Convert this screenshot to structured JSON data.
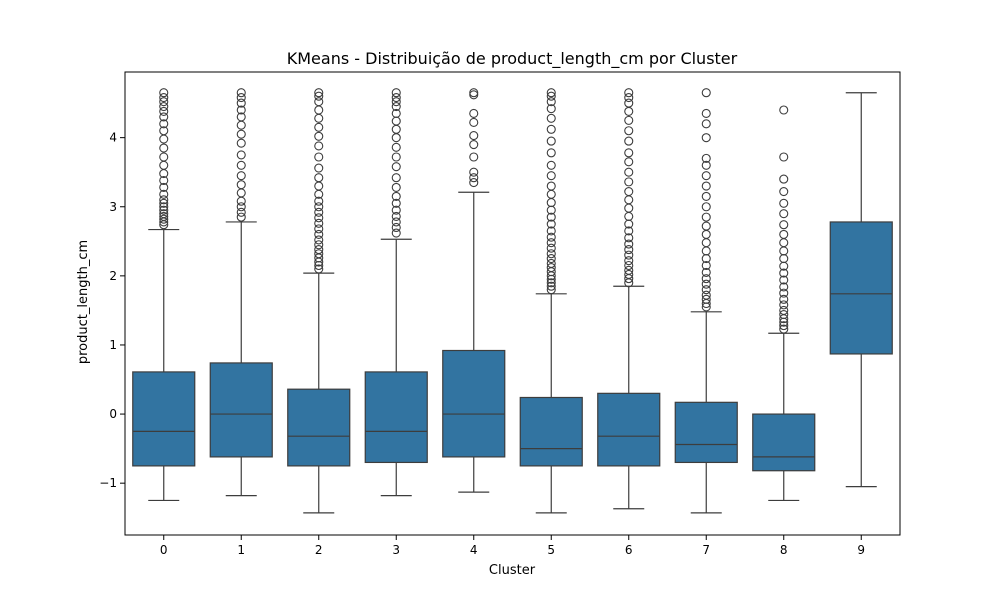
{
  "chart_data": {
    "type": "box",
    "title": "KMeans - Distribuição de product_length_cm por Cluster",
    "xlabel": "Cluster",
    "ylabel": "product_length_cm",
    "categories": [
      "0",
      "1",
      "2",
      "3",
      "4",
      "5",
      "6",
      "7",
      "8",
      "9"
    ],
    "ylim": [
      -1.75,
      4.95
    ],
    "yticks": [
      -1,
      0,
      1,
      2,
      3,
      4
    ],
    "ytick_labels": [
      "−1",
      "0",
      "1",
      "2",
      "3",
      "4"
    ],
    "box_color": "#3274a1",
    "line_color": "#3d3d3d",
    "grid": false,
    "boxes": [
      {
        "whislo": -1.25,
        "q1": -0.75,
        "med": -0.25,
        "q3": 0.61,
        "whishi": 2.67,
        "fliers": [
          2.74,
          2.78,
          2.82,
          2.86,
          2.9,
          2.95,
          3.0,
          3.05,
          3.1,
          3.18,
          3.28,
          3.38,
          3.48,
          3.6,
          3.72,
          3.85,
          3.98,
          4.1,
          4.2,
          4.3,
          4.38,
          4.45,
          4.52,
          4.58,
          4.65
        ]
      },
      {
        "whislo": -1.18,
        "q1": -0.62,
        "med": 0.0,
        "q3": 0.74,
        "whishi": 2.78,
        "fliers": [
          2.85,
          2.92,
          3.0,
          3.08,
          3.2,
          3.32,
          3.45,
          3.6,
          3.75,
          3.92,
          4.05,
          4.18,
          4.3,
          4.4,
          4.5,
          4.58,
          4.65
        ]
      },
      {
        "whislo": -1.43,
        "q1": -0.75,
        "med": -0.32,
        "q3": 0.36,
        "whishi": 2.04,
        "fliers": [
          2.1,
          2.15,
          2.2,
          2.26,
          2.32,
          2.38,
          2.45,
          2.52,
          2.6,
          2.68,
          2.76,
          2.84,
          2.92,
          3.0,
          3.08,
          3.18,
          3.3,
          3.42,
          3.56,
          3.72,
          3.88,
          4.02,
          4.15,
          4.28,
          4.4,
          4.52,
          4.6,
          4.65
        ]
      },
      {
        "whislo": -1.18,
        "q1": -0.7,
        "med": -0.25,
        "q3": 0.61,
        "whishi": 2.53,
        "fliers": [
          2.62,
          2.7,
          2.78,
          2.86,
          2.95,
          3.05,
          3.15,
          3.28,
          3.42,
          3.58,
          3.72,
          3.86,
          4.0,
          4.12,
          4.24,
          4.35,
          4.45,
          4.52,
          4.58,
          4.65
        ]
      },
      {
        "whislo": -1.13,
        "q1": -0.62,
        "med": 0.0,
        "q3": 0.92,
        "whishi": 3.21,
        "fliers": [
          3.35,
          3.42,
          3.5,
          3.72,
          3.9,
          4.03,
          4.22,
          4.35,
          4.62,
          4.65
        ]
      },
      {
        "whislo": -1.43,
        "q1": -0.75,
        "med": -0.5,
        "q3": 0.24,
        "whishi": 1.74,
        "fliers": [
          1.8,
          1.85,
          1.9,
          1.95,
          2.0,
          2.06,
          2.12,
          2.18,
          2.25,
          2.32,
          2.4,
          2.48,
          2.56,
          2.65,
          2.75,
          2.85,
          2.95,
          3.06,
          3.18,
          3.3,
          3.45,
          3.6,
          3.78,
          3.95,
          4.12,
          4.28,
          4.42,
          4.52,
          4.6,
          4.65
        ]
      },
      {
        "whislo": -1.37,
        "q1": -0.75,
        "med": -0.32,
        "q3": 0.3,
        "whishi": 1.85,
        "fliers": [
          1.9,
          1.96,
          2.02,
          2.08,
          2.15,
          2.22,
          2.3,
          2.38,
          2.46,
          2.55,
          2.65,
          2.75,
          2.86,
          2.98,
          3.1,
          3.22,
          3.36,
          3.5,
          3.65,
          3.78,
          3.95,
          4.1,
          4.25,
          4.38,
          4.5,
          4.58,
          4.65
        ]
      },
      {
        "whislo": -1.43,
        "q1": -0.7,
        "med": -0.44,
        "q3": 0.17,
        "whishi": 1.48,
        "fliers": [
          1.55,
          1.6,
          1.66,
          1.72,
          1.8,
          1.88,
          1.96,
          2.05,
          2.15,
          2.25,
          2.36,
          2.48,
          2.6,
          2.72,
          2.85,
          3.0,
          3.15,
          3.3,
          3.45,
          3.6,
          3.7,
          4.0,
          4.2,
          4.35,
          4.65
        ]
      },
      {
        "whislo": -1.25,
        "q1": -0.82,
        "med": -0.62,
        "q3": 0.0,
        "whishi": 1.17,
        "fliers": [
          1.23,
          1.28,
          1.33,
          1.38,
          1.44,
          1.5,
          1.58,
          1.66,
          1.75,
          1.84,
          1.94,
          2.04,
          2.14,
          2.25,
          2.36,
          2.48,
          2.6,
          2.74,
          2.9,
          3.05,
          3.22,
          3.4,
          3.72,
          4.4
        ]
      },
      {
        "whislo": -1.05,
        "q1": 0.87,
        "med": 1.74,
        "q3": 2.78,
        "whishi": 4.65,
        "fliers": []
      }
    ]
  }
}
